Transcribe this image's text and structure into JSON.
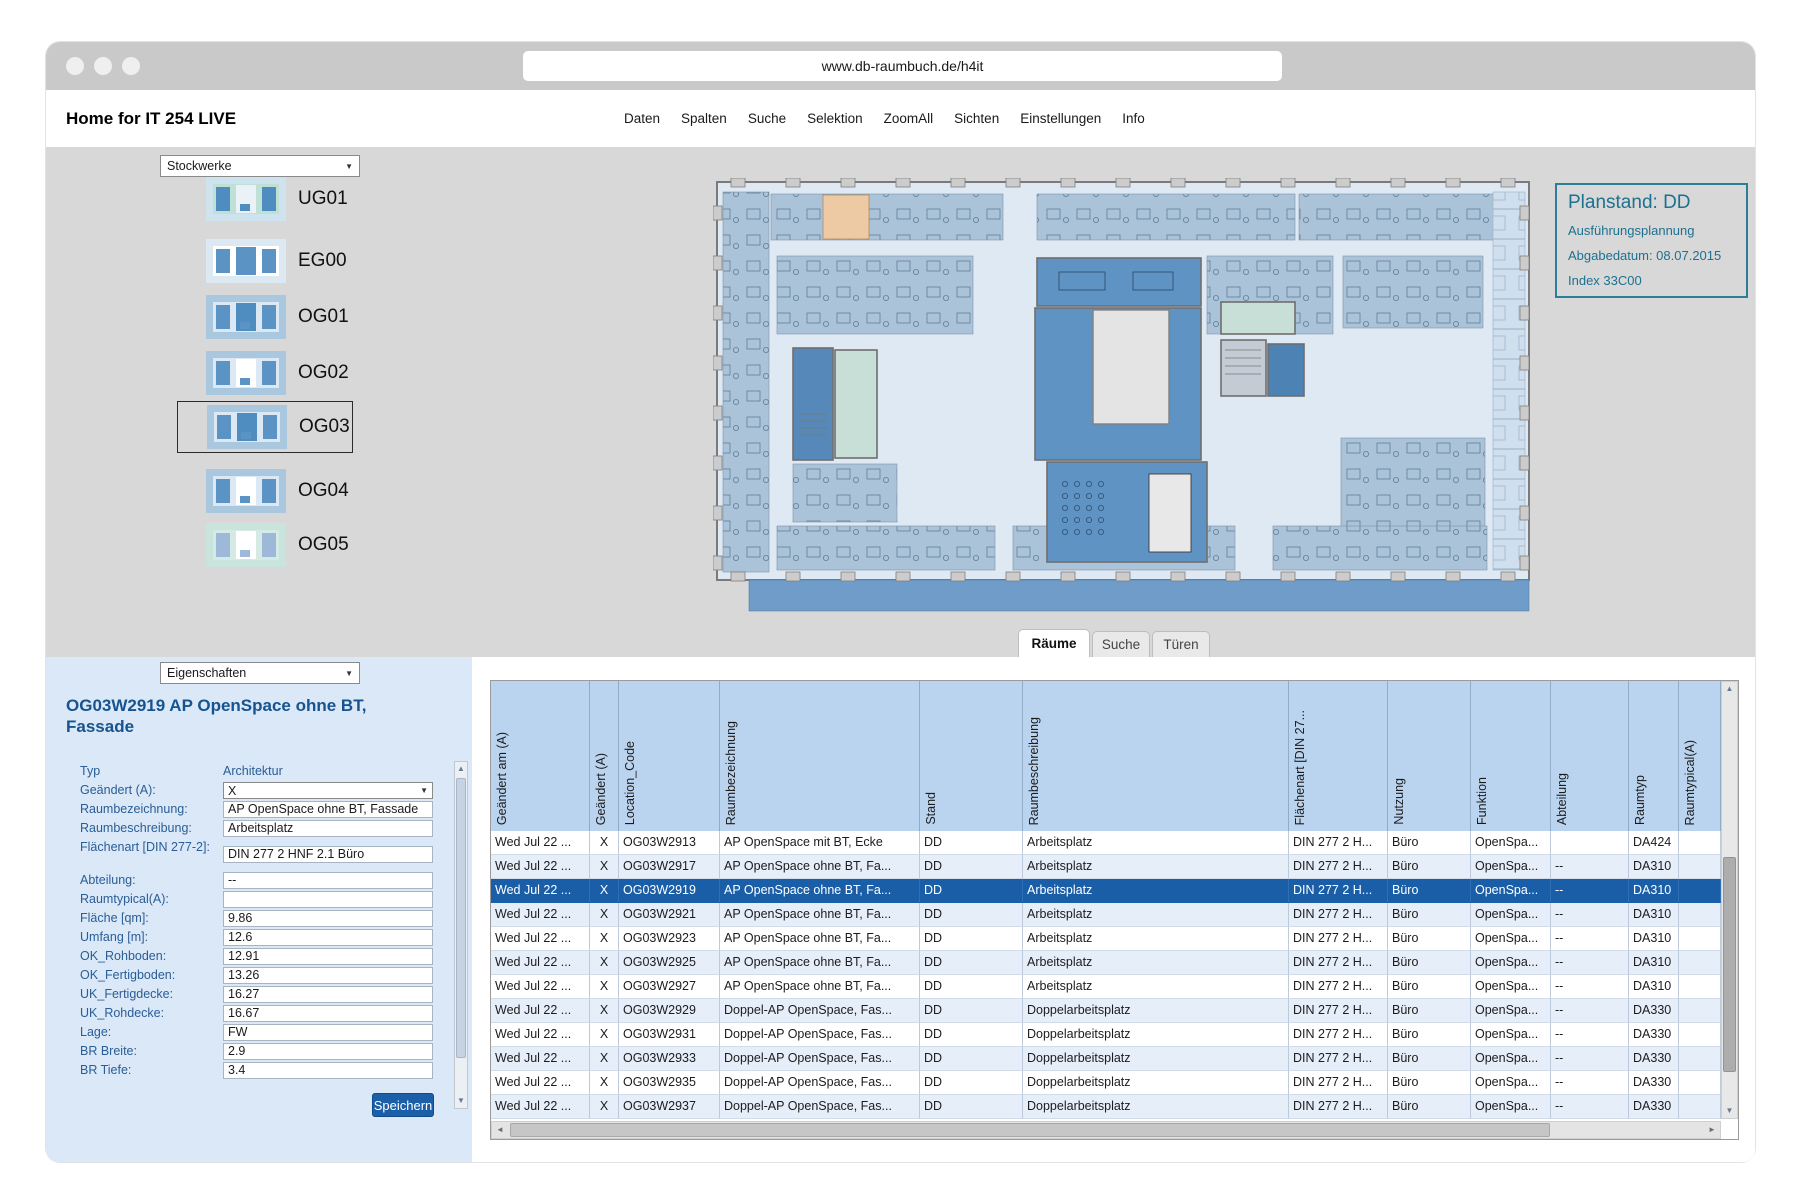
{
  "browser": {
    "url": "www.db-raumbuch.de/h4it"
  },
  "header": {
    "title": "Home for IT 254 LIVE",
    "menu": [
      "Daten",
      "Spalten",
      "Suche",
      "Selektion",
      "ZoomAll",
      "Sichten",
      "Einstellungen",
      "Info"
    ]
  },
  "sidebar": {
    "selector_value": "Stockwerke",
    "floors": [
      {
        "id": "UG01",
        "selected": false,
        "thumb": {
          "bg": "#cfe3ee",
          "inner": "#bfe0d5",
          "center": "#eaf2f8",
          "accent": "#4f8cc0"
        }
      },
      {
        "id": "EG00",
        "selected": false,
        "thumb": {
          "bg": "#dce9f3",
          "inner": "#ffffff",
          "center": "#5b93c4",
          "accent": "#5b93c4"
        }
      },
      {
        "id": "OG01",
        "selected": false,
        "thumb": {
          "bg": "#a9c8e0",
          "inner": "#dce9f5",
          "center": "#4f8cc0",
          "accent": "#5b93c4"
        }
      },
      {
        "id": "OG02",
        "selected": false,
        "thumb": {
          "bg": "#a9c8e0",
          "inner": "#dce9f5",
          "center": "#ffffff",
          "accent": "#5b93c4"
        }
      },
      {
        "id": "OG03",
        "selected": true,
        "thumb": {
          "bg": "#a9c8e0",
          "inner": "#dce9f5",
          "center": "#4f8cc0",
          "accent": "#5b93c4"
        }
      },
      {
        "id": "OG04",
        "selected": false,
        "thumb": {
          "bg": "#a9c8e0",
          "inner": "#dce9f5",
          "center": "#ffffff",
          "accent": "#5b93c4"
        }
      },
      {
        "id": "OG05",
        "selected": false,
        "thumb": {
          "bg": "#c9e4dc",
          "inner": "#d5eae2",
          "center": "#ffffff",
          "accent": "#9db8d8"
        }
      }
    ]
  },
  "planstand": {
    "title": "Planstand: DD",
    "lines": [
      "Ausführungsplannung",
      "Abgabedatum: 08.07.2015",
      "Index 33C00"
    ]
  },
  "tabs": [
    {
      "label": "Räume",
      "active": true
    },
    {
      "label": "Suche",
      "active": false
    },
    {
      "label": "Türen",
      "active": false
    }
  ],
  "properties": {
    "selector_value": "Eigenschaften",
    "title": "OG03W2919 AP OpenSpace ohne BT, Fassade",
    "save_label": "Speichern",
    "fields": [
      {
        "label": "Typ",
        "value": "Architektur",
        "type": "text"
      },
      {
        "label": "Geändert (A):",
        "value": "X",
        "type": "select"
      },
      {
        "label": "Raumbezeichnung:",
        "value": "AP OpenSpace ohne BT, Fassade",
        "type": "input"
      },
      {
        "label": "Raumbeschreibung:",
        "value": "Arbeitsplatz",
        "type": "input"
      },
      {
        "label": "Flächenart [DIN 277-2]:",
        "value": "DIN 277 2 HNF 2.1 Büro",
        "type": "input",
        "tall": true
      },
      {
        "label": "Abteilung:",
        "value": "--",
        "type": "input"
      },
      {
        "label": "Raumtypical(A):",
        "value": "",
        "type": "input"
      },
      {
        "label": "Fläche [qm]:",
        "value": "9.86",
        "type": "input"
      },
      {
        "label": "Umfang [m]:",
        "value": "12.6",
        "type": "input"
      },
      {
        "label": "OK_Rohboden:",
        "value": "12.91",
        "type": "input"
      },
      {
        "label": "OK_Fertigboden:",
        "value": "13.26",
        "type": "input"
      },
      {
        "label": "UK_Fertigdecke:",
        "value": "16.27",
        "type": "input"
      },
      {
        "label": "UK_Rohdecke:",
        "value": "16.67",
        "type": "input"
      },
      {
        "label": "Lage:",
        "value": "FW",
        "type": "input"
      },
      {
        "label": "BR Breite:",
        "value": "2.9",
        "type": "input"
      },
      {
        "label": "BR Tiefe:",
        "value": "3.4",
        "type": "input"
      }
    ]
  },
  "table": {
    "columns": [
      "Geändert am (A)",
      "Geändert (A)",
      "Location_Code",
      "Raumbezeichnung",
      "Stand",
      "Raumbeschreibung",
      "Flächenart [DIN 27...",
      "Nutzung",
      "Funktion",
      "Abteilung",
      "Raumtyp",
      "Raumtypical(A)"
    ],
    "selected_row_index": 2,
    "rows": [
      [
        "Wed Jul 22 ...",
        "X",
        "OG03W2913",
        "AP OpenSpace mit BT, Ecke",
        "DD",
        "Arbeitsplatz",
        "DIN 277 2 H...",
        "Büro",
        "OpenSpa...",
        "",
        "DA424",
        ""
      ],
      [
        "Wed Jul 22 ...",
        "X",
        "OG03W2917",
        "AP OpenSpace ohne BT, Fa...",
        "DD",
        "Arbeitsplatz",
        "DIN 277 2 H...",
        "Büro",
        "OpenSpa...",
        "--",
        "DA310",
        ""
      ],
      [
        "Wed Jul 22 ...",
        "X",
        "OG03W2919",
        "AP OpenSpace ohne BT, Fa...",
        "DD",
        "Arbeitsplatz",
        "DIN 277 2 H...",
        "Büro",
        "OpenSpa...",
        "--",
        "DA310",
        ""
      ],
      [
        "Wed Jul 22 ...",
        "X",
        "OG03W2921",
        "AP OpenSpace ohne BT, Fa...",
        "DD",
        "Arbeitsplatz",
        "DIN 277 2 H...",
        "Büro",
        "OpenSpa...",
        "--",
        "DA310",
        ""
      ],
      [
        "Wed Jul 22 ...",
        "X",
        "OG03W2923",
        "AP OpenSpace ohne BT, Fa...",
        "DD",
        "Arbeitsplatz",
        "DIN 277 2 H...",
        "Büro",
        "OpenSpa...",
        "--",
        "DA310",
        ""
      ],
      [
        "Wed Jul 22 ...",
        "X",
        "OG03W2925",
        "AP OpenSpace ohne BT, Fa...",
        "DD",
        "Arbeitsplatz",
        "DIN 277 2 H...",
        "Büro",
        "OpenSpa...",
        "--",
        "DA310",
        ""
      ],
      [
        "Wed Jul 22 ...",
        "X",
        "OG03W2927",
        "AP OpenSpace ohne BT, Fa...",
        "DD",
        "Arbeitsplatz",
        "DIN 277 2 H...",
        "Büro",
        "OpenSpa...",
        "--",
        "DA310",
        ""
      ],
      [
        "Wed Jul 22 ...",
        "X",
        "OG03W2929",
        "Doppel-AP OpenSpace, Fas...",
        "DD",
        "Doppelarbeitsplatz",
        "DIN 277 2 H...",
        "Büro",
        "OpenSpa...",
        "--",
        "DA330",
        ""
      ],
      [
        "Wed Jul 22 ...",
        "X",
        "OG03W2931",
        "Doppel-AP OpenSpace, Fas...",
        "DD",
        "Doppelarbeitsplatz",
        "DIN 277 2 H...",
        "Büro",
        "OpenSpa...",
        "--",
        "DA330",
        ""
      ],
      [
        "Wed Jul 22 ...",
        "X",
        "OG03W2933",
        "Doppel-AP OpenSpace, Fas...",
        "DD",
        "Doppelarbeitsplatz",
        "DIN 277 2 H...",
        "Büro",
        "OpenSpa...",
        "--",
        "DA330",
        ""
      ],
      [
        "Wed Jul 22 ...",
        "X",
        "OG03W2935",
        "Doppel-AP OpenSpace, Fas...",
        "DD",
        "Doppelarbeitsplatz",
        "DIN 277 2 H...",
        "Büro",
        "OpenSpa...",
        "--",
        "DA330",
        ""
      ],
      [
        "Wed Jul 22 ...",
        "X",
        "OG03W2937",
        "Doppel-AP OpenSpace, Fas...",
        "DD",
        "Doppelarbeitsplatz",
        "DIN 277 2 H...",
        "Büro",
        "OpenSpa...",
        "--",
        "DA330",
        ""
      ]
    ]
  },
  "icons": {
    "dropdown_arrow": "▼",
    "scroll_up": "▲",
    "scroll_down": "▼",
    "scroll_left": "◄",
    "scroll_right": "►"
  },
  "colors": {
    "accent_blue": "#1a5fa8",
    "selected_row": "#1b5ea8",
    "table_header_bg": "#bad3ef",
    "panel_bg": "#dae8f7",
    "label_blue": "#2a5d96",
    "title_blue": "#17548f",
    "planstand_teal": "#1d7190",
    "workspace_gray": "#d8d8d8",
    "plan_room_light": "#dfe9f4",
    "plan_desk_zone": "#abc3d8",
    "plan_core_blue": "#5f93c4",
    "plan_green_room": "#c7dfd6",
    "plan_selected_room": "#eecaa4",
    "plan_facade_band": "#6f9cc8"
  }
}
